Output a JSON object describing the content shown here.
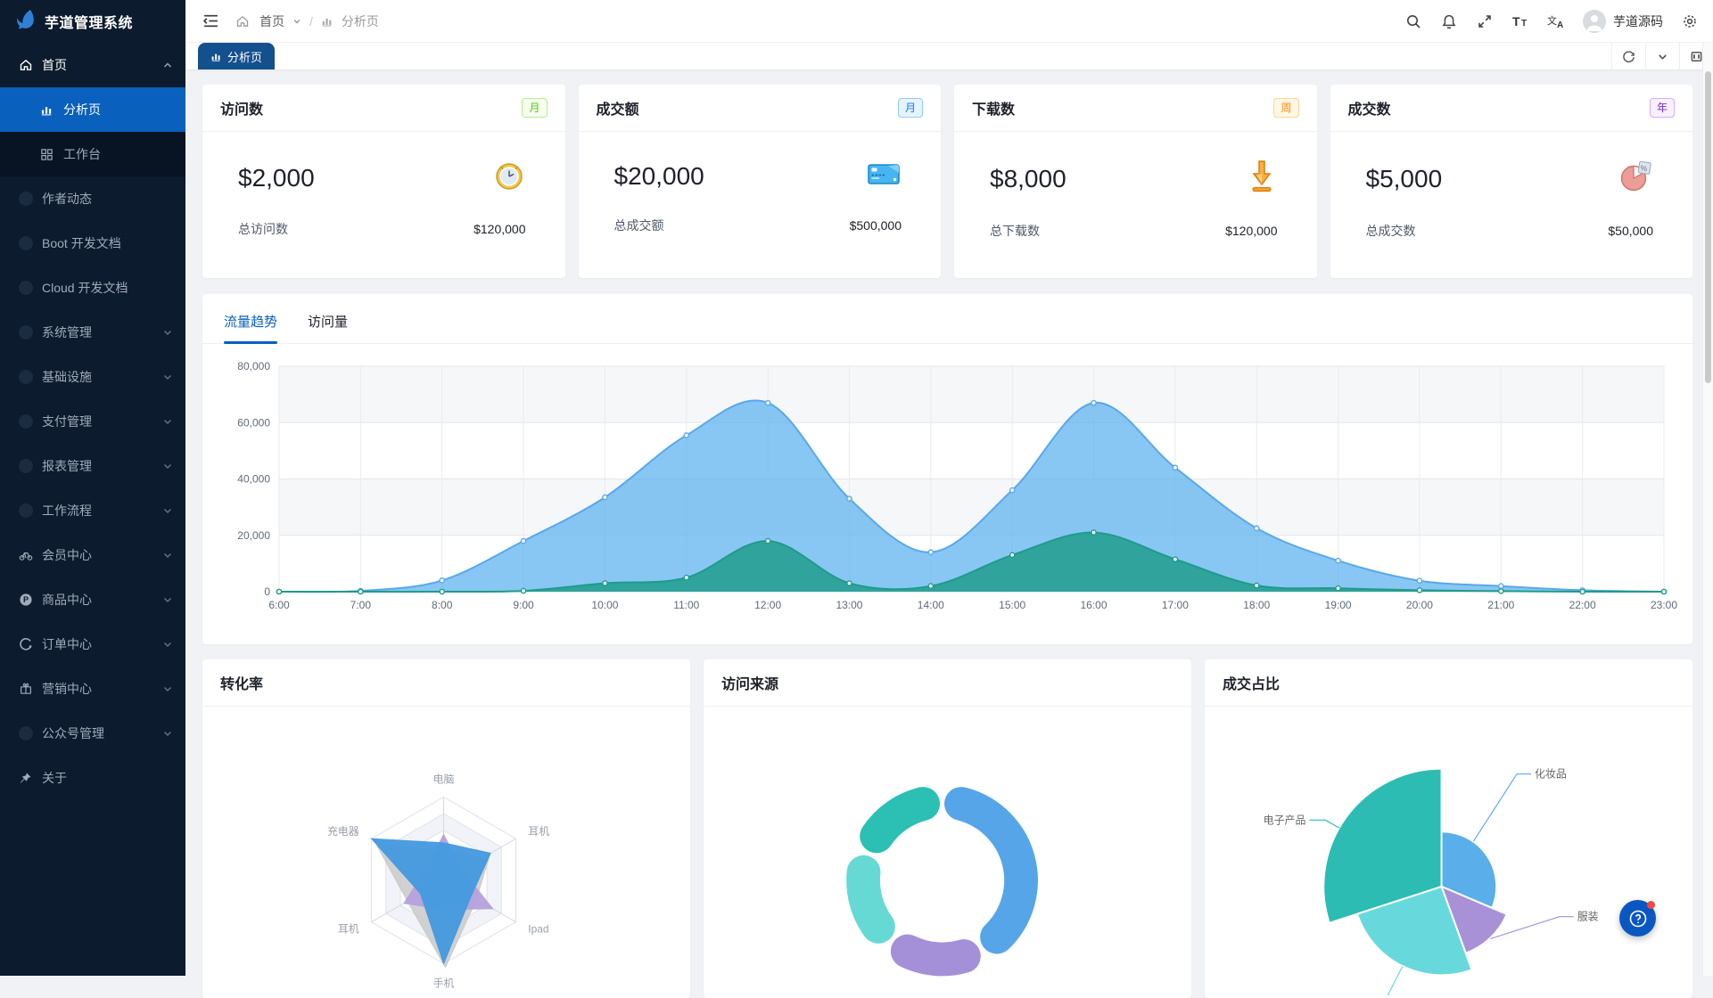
{
  "app": {
    "name": "芋道管理系统"
  },
  "sidebar": {
    "logo": "芋道管理系统",
    "home": {
      "label": "首页"
    },
    "children": [
      {
        "label": "分析页"
      },
      {
        "label": "工作台"
      }
    ],
    "items": [
      "作者动态",
      "Boot 开发文档",
      "Cloud 开发文档",
      "系统管理",
      "基础设施",
      "支付管理",
      "报表管理",
      "工作流程",
      "会员中心",
      "商品中心",
      "订单中心",
      "营销中心",
      "公众号管理",
      "关于"
    ]
  },
  "header": {
    "breadcrumb": {
      "home": "首页",
      "current": "分析页"
    },
    "username": "芋道源码",
    "icons": [
      "search-icon",
      "bell-icon",
      "fullscreen-icon",
      "font-size-icon",
      "language-icon",
      "gear-icon"
    ]
  },
  "tabbar": {
    "active_tab": "分析页"
  },
  "stats": [
    {
      "title": "访问数",
      "tag": "月",
      "tag_color": "green",
      "value": "$2,000",
      "footer_label": "总访问数",
      "footer_value": "$120,000",
      "icon": "clock-icon"
    },
    {
      "title": "成交额",
      "tag": "月",
      "tag_color": "blue",
      "value": "$20,000",
      "footer_label": "总成交额",
      "footer_value": "$500,000",
      "icon": "credit-card-icon"
    },
    {
      "title": "下载数",
      "tag": "周",
      "tag_color": "orange",
      "value": "$8,000",
      "footer_label": "总下载数",
      "footer_value": "$120,000",
      "icon": "download-icon"
    },
    {
      "title": "成交数",
      "tag": "年",
      "tag_color": "purple",
      "value": "$5,000",
      "footer_label": "总成交数",
      "footer_value": "$50,000",
      "icon": "pie-icon"
    }
  ],
  "trend": {
    "tabs": [
      "流量趋势",
      "访问量"
    ],
    "active": 0
  },
  "chart_data": [
    {
      "type": "area",
      "title": "流量趋势",
      "x": [
        "6:00",
        "7:00",
        "8:00",
        "9:00",
        "10:00",
        "11:00",
        "12:00",
        "13:00",
        "14:00",
        "15:00",
        "16:00",
        "17:00",
        "18:00",
        "19:00",
        "20:00",
        "21:00",
        "22:00",
        "23:00"
      ],
      "series": [
        {
          "name": "series-blue",
          "color": "#58a8ec",
          "fill": "rgba(90,177,239,0.72)",
          "values": [
            0,
            300,
            4000,
            18000,
            33500,
            55500,
            67000,
            33000,
            14000,
            36000,
            67000,
            44000,
            22500,
            11000,
            3900,
            2000,
            500,
            0
          ]
        },
        {
          "name": "series-green",
          "color": "#1e9c8a",
          "fill": "rgba(42,161,151,0.95)",
          "values": [
            0,
            0,
            0,
            300,
            3000,
            5000,
            18000,
            3000,
            2000,
            13000,
            21000,
            11500,
            2200,
            1200,
            500,
            200,
            0,
            0
          ]
        }
      ],
      "ylim": [
        0,
        80000
      ],
      "yticks": [
        "0",
        "20,000",
        "40,000",
        "60,000",
        "80,000"
      ],
      "grid": true,
      "legend": "none"
    },
    {
      "type": "radar",
      "title": "转化率",
      "indicators": [
        "电脑",
        "耳机",
        "Ipad",
        "手机",
        "耳机",
        "充电器"
      ],
      "max": 100,
      "series": [
        {
          "name": "shadow-gray",
          "color": "#c9c9c9",
          "values": [
            40,
            60,
            42,
            100,
            50,
            96
          ]
        },
        {
          "name": "series-purple",
          "color": "#b6a2de",
          "values": [
            55,
            25,
            68,
            35,
            55,
            25
          ]
        },
        {
          "name": "series-blue",
          "color": "#459ae0",
          "values": [
            45,
            65,
            38,
            100,
            32,
            100
          ]
        }
      ]
    },
    {
      "type": "donut",
      "title": "访问来源",
      "segments": [
        {
          "color": "#56a5e8",
          "start_deg": 2,
          "end_deg": 148,
          "pct": 41
        },
        {
          "color": "#a490d8",
          "start_deg": 152,
          "end_deg": 218,
          "pct": 18
        },
        {
          "color": "#66d9d5",
          "start_deg": 222,
          "end_deg": 288,
          "pct": 18
        },
        {
          "color": "#2cbfb4",
          "start_deg": 292,
          "end_deg": 358,
          "pct": 18
        }
      ]
    },
    {
      "type": "pie-rose",
      "title": "成交占比",
      "slices": [
        {
          "label": "化妆品",
          "color": "#5aaeea",
          "start_deg": 0,
          "end_deg": 113,
          "radius": 62
        },
        {
          "label": "服装",
          "color": "#a891d6",
          "start_deg": 113,
          "end_deg": 160,
          "radius": 80
        },
        {
          "label": "",
          "color": "#67d9dd",
          "start_deg": 160,
          "end_deg": 252,
          "radius": 100
        },
        {
          "label": "电子产品",
          "color": "#2cbcb4",
          "start_deg": 252,
          "end_deg": 360,
          "radius": 133
        }
      ]
    }
  ]
}
